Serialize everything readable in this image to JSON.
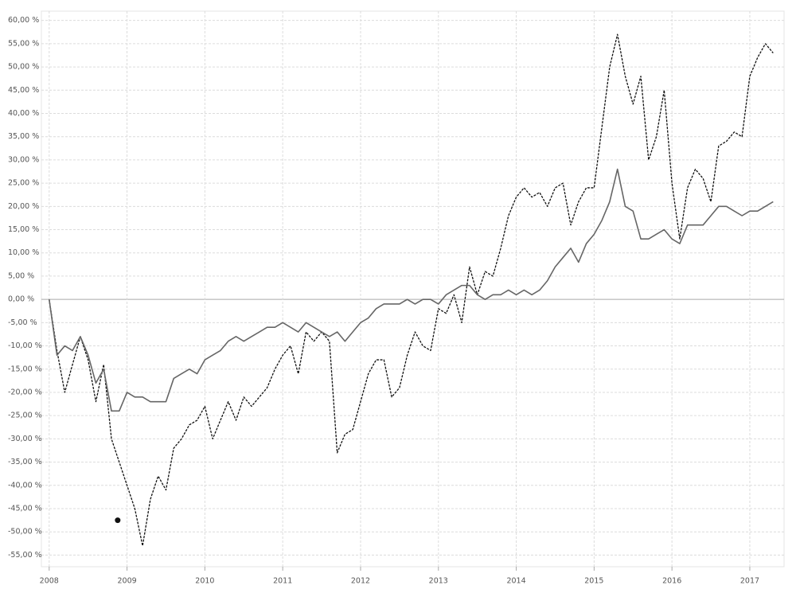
{
  "chart_data": {
    "type": "line",
    "x": [
      2008.0,
      2008.1,
      2008.2,
      2008.3,
      2008.4,
      2008.5,
      2008.6,
      2008.7,
      2008.8,
      2008.9,
      2009.0,
      2009.1,
      2009.2,
      2009.3,
      2009.4,
      2009.5,
      2009.6,
      2009.7,
      2009.8,
      2009.9,
      2010.0,
      2010.1,
      2010.2,
      2010.3,
      2010.4,
      2010.5,
      2010.6,
      2010.7,
      2010.8,
      2010.9,
      2011.0,
      2011.1,
      2011.2,
      2011.3,
      2011.4,
      2011.5,
      2011.6,
      2011.7,
      2011.8,
      2011.9,
      2012.0,
      2012.1,
      2012.2,
      2012.3,
      2012.4,
      2012.5,
      2012.6,
      2012.7,
      2012.8,
      2012.9,
      2013.0,
      2013.1,
      2013.2,
      2013.3,
      2013.4,
      2013.5,
      2013.6,
      2013.7,
      2013.8,
      2013.9,
      2014.0,
      2014.1,
      2014.2,
      2014.3,
      2014.4,
      2014.5,
      2014.6,
      2014.7,
      2014.8,
      2014.9,
      2015.0,
      2015.1,
      2015.2,
      2015.3,
      2015.4,
      2015.5,
      2015.6,
      2015.7,
      2015.8,
      2015.9,
      2016.0,
      2016.1,
      2016.2,
      2016.3,
      2016.4,
      2016.5,
      2016.6,
      2016.7,
      2016.8,
      2016.9,
      2017.0,
      2017.1,
      2017.2,
      2017.3
    ],
    "series": [
      {
        "color": "#111111",
        "dashed": true,
        "values": [
          0,
          -11,
          -20,
          -14,
          -8,
          -13,
          -22,
          -14,
          -30,
          -35,
          -40,
          -45,
          -53,
          -43,
          -38,
          -41,
          -32,
          -30,
          -27,
          -26,
          -23,
          -30,
          -26,
          -22,
          -26,
          -21,
          -23,
          -21,
          -19,
          -15,
          -12,
          -10,
          -16,
          -7,
          -9,
          -7,
          -9,
          -33,
          -29,
          -28,
          -22,
          -16,
          -13,
          -13,
          -21,
          -19,
          -12,
          -7,
          -10,
          -11,
          -2,
          -3,
          1,
          -5,
          7,
          1,
          6,
          5,
          11,
          18,
          22,
          24,
          22,
          23,
          20,
          24,
          25,
          16,
          21,
          24,
          24,
          37,
          50,
          57,
          48,
          42,
          48,
          30,
          35,
          45,
          25,
          13,
          24,
          28,
          26,
          21,
          33,
          34,
          36,
          35,
          48,
          52,
          55,
          53
        ]
      },
      {
        "color": "#666666",
        "dashed": false,
        "values": [
          0,
          -12,
          -10,
          -11,
          -8,
          -12,
          -18,
          -15,
          -24,
          -24,
          -20,
          -21,
          -21,
          -22,
          -22,
          -22,
          -17,
          -16,
          -15,
          -16,
          -13,
          -12,
          -11,
          -9,
          -8,
          -9,
          -8,
          -7,
          -6,
          -6,
          -5,
          -6,
          -7,
          -5,
          -6,
          -7,
          -8,
          -7,
          -9,
          -7,
          -5,
          -4,
          -2,
          -1,
          -1,
          -1,
          0,
          -1,
          0,
          0,
          -1,
          1,
          2,
          3,
          3,
          1,
          0,
          1,
          1,
          2,
          1,
          2,
          1,
          2,
          4,
          7,
          9,
          11,
          8,
          12,
          14,
          17,
          21,
          28,
          20,
          19,
          13,
          13,
          14,
          15,
          13,
          12,
          16,
          16,
          16,
          18,
          20,
          20,
          19,
          18,
          19,
          19,
          20,
          21
        ]
      }
    ],
    "markers": [
      {
        "x": 2008.88,
        "y": -47.5,
        "color": "#111111"
      }
    ],
    "xlim": [
      2007.9,
      2017.44
    ],
    "xticks": [
      2008,
      2009,
      2010,
      2011,
      2012,
      2013,
      2014,
      2015,
      2016,
      2017
    ],
    "ylim": [
      -57.5,
      62
    ],
    "yticks": [
      {
        "value": -55,
        "label": "-55,00 %"
      },
      {
        "value": -50,
        "label": "-50,00 %"
      },
      {
        "value": -45,
        "label": "-45,00 %"
      },
      {
        "value": -40,
        "label": "-40,00 %"
      },
      {
        "value": -35,
        "label": "-35,00 %"
      },
      {
        "value": -30,
        "label": "-30,00 %"
      },
      {
        "value": -25,
        "label": "-25,00 %"
      },
      {
        "value": -20,
        "label": "-20,00 %"
      },
      {
        "value": -15,
        "label": "-15,00 %"
      },
      {
        "value": -10,
        "label": "-10,00 %"
      },
      {
        "value": -5,
        "label": "-5,00 %"
      },
      {
        "value": 0,
        "label": "0,00 %"
      },
      {
        "value": 5,
        "label": "5,00 %"
      },
      {
        "value": 10,
        "label": "10,00 %"
      },
      {
        "value": 15,
        "label": "15,00 %"
      },
      {
        "value": 20,
        "label": "20,00 %"
      },
      {
        "value": 25,
        "label": "25,00 %"
      },
      {
        "value": 30,
        "label": "30,00 %"
      },
      {
        "value": 35,
        "label": "35,00 %"
      },
      {
        "value": 40,
        "label": "40,00 %"
      },
      {
        "value": 45,
        "label": "45,00 %"
      },
      {
        "value": 50,
        "label": "50,00 %"
      },
      {
        "value": 55,
        "label": "55,00 %"
      },
      {
        "value": 60,
        "label": "60,00 %"
      }
    ],
    "grid": true
  }
}
